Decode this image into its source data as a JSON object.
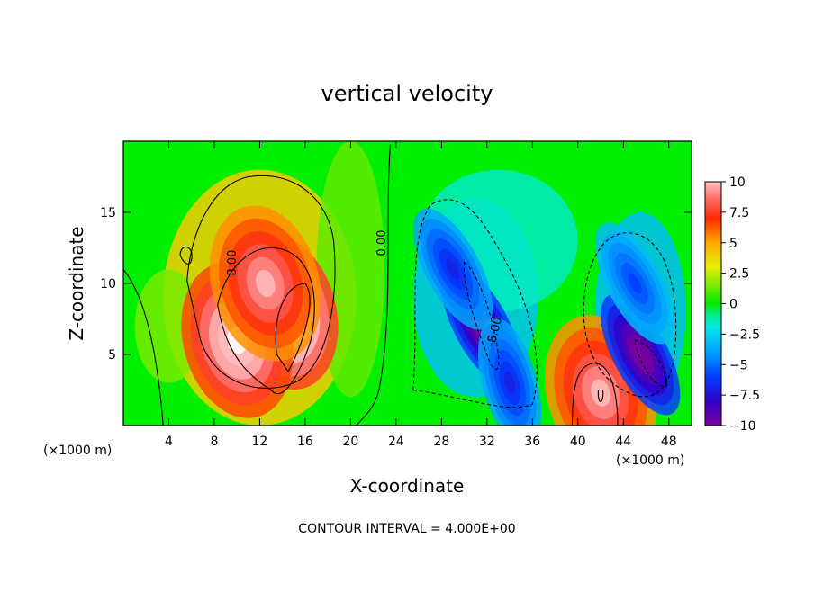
{
  "chart_data": {
    "type": "heatmap",
    "title": "vertical velocity",
    "xlabel": "X-coordinate",
    "ylabel": "Z-coordinate",
    "x_unit": "(×1000 m)",
    "x_unit_right": "(×1000 m)",
    "xlim": [
      0,
      50
    ],
    "ylim": [
      0,
      20
    ],
    "xticks": [
      "4",
      "8",
      "12",
      "16",
      "20",
      "24",
      "28",
      "32",
      "36",
      "40",
      "44",
      "48"
    ],
    "yticks": [
      "5",
      "10",
      "15"
    ],
    "colorbar": {
      "min": -10,
      "max": 10,
      "ticks": [
        "10",
        "7.5",
        "5",
        "2.5",
        "0",
        "−2.5",
        "−5",
        "−7.5",
        "−10"
      ]
    },
    "contour_labels": [
      "8.00",
      "0.00",
      "-8.00"
    ],
    "contour_interval": "CONTOUR INTERVAL = 4.000E+00",
    "field_features": [
      {
        "x": 14,
        "z": 8,
        "w": 14
      },
      {
        "x": 10,
        "z": 6,
        "w": 12
      },
      {
        "x": 12.5,
        "z": 10,
        "w": 10
      },
      {
        "x": 42,
        "z": 2.3,
        "w": 10
      },
      {
        "x": 31.5,
        "z": 7,
        "w": -11
      },
      {
        "x": 45.5,
        "z": 5,
        "w": -11
      },
      {
        "x": 29,
        "z": 11,
        "w": -7
      },
      {
        "x": 45,
        "z": 10,
        "w": -6
      },
      {
        "x": 34,
        "z": 3,
        "w": -7
      }
    ]
  }
}
